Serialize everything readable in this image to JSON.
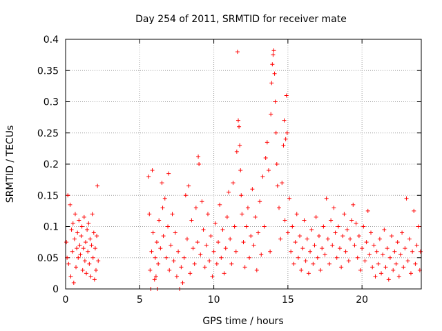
{
  "chart_data": {
    "type": "scatter",
    "title": "Day 254 of 2011, SRMTID for receiver mate",
    "xlabel": "GPS time / hours",
    "ylabel": "SRMTID / TECUs",
    "xlim": [
      0,
      24
    ],
    "ylim": [
      0,
      0.4
    ],
    "xticks": [
      0,
      5,
      10,
      15,
      20
    ],
    "xtick_labels": [
      "0",
      "5",
      "10",
      "15",
      "20"
    ],
    "yticks": [
      0,
      0.05,
      0.1,
      0.15,
      0.2,
      0.25,
      0.3,
      0.35,
      0.4
    ],
    "ytick_labels": [
      "0",
      "0.05",
      "0.1",
      "0.15",
      "0.2",
      "0.25",
      "0.3",
      "0.35",
      "0.4"
    ],
    "grid": true,
    "marker": "+",
    "color": "#ff0000",
    "series": [
      {
        "name": "SRMTID",
        "points": [
          [
            0.05,
            0.075
          ],
          [
            0.1,
            0.05
          ],
          [
            0.15,
            0.15
          ],
          [
            0.2,
            0.04
          ],
          [
            0.3,
            0.135
          ],
          [
            0.35,
            0.02
          ],
          [
            0.4,
            0.095
          ],
          [
            0.45,
            0.06
          ],
          [
            0.5,
            0.105
          ],
          [
            0.55,
            0.01
          ],
          [
            0.6,
            0.08
          ],
          [
            0.65,
            0.12
          ],
          [
            0.7,
            0.035
          ],
          [
            0.75,
            0.065
          ],
          [
            0.8,
            0.09
          ],
          [
            0.85,
            0.05
          ],
          [
            0.9,
            0.11
          ],
          [
            0.95,
            0.07
          ],
          [
            1.0,
            0.055
          ],
          [
            1.05,
            0.085
          ],
          [
            1.1,
            0.1
          ],
          [
            1.15,
            0.03
          ],
          [
            1.2,
            0.065
          ],
          [
            1.25,
            0.115
          ],
          [
            1.3,
            0.045
          ],
          [
            1.35,
            0.075
          ],
          [
            1.4,
            0.025
          ],
          [
            1.45,
            0.095
          ],
          [
            1.5,
            0.06
          ],
          [
            1.55,
            0.105
          ],
          [
            1.6,
            0.04
          ],
          [
            1.65,
            0.08
          ],
          [
            1.7,
            0.02
          ],
          [
            1.75,
            0.07
          ],
          [
            1.8,
            0.12
          ],
          [
            1.85,
            0.05
          ],
          [
            1.9,
            0.09
          ],
          [
            1.95,
            0.015
          ],
          [
            2.0,
            0.065
          ],
          [
            2.05,
            0.03
          ],
          [
            2.1,
            0.085
          ],
          [
            2.15,
            0.165
          ],
          [
            2.2,
            0.045
          ],
          [
            5.6,
            0.18
          ],
          [
            5.65,
            0.12
          ],
          [
            5.7,
            0.03
          ],
          [
            5.75,
            0.0
          ],
          [
            5.8,
            0.06
          ],
          [
            5.85,
            0.19
          ],
          [
            5.9,
            0.09
          ],
          [
            6.0,
            0.015
          ],
          [
            6.05,
            0.05
          ],
          [
            6.1,
            0.02
          ],
          [
            6.15,
            0.075
          ],
          [
            6.2,
            0.0
          ],
          [
            6.25,
            0.04
          ],
          [
            6.3,
            0.11
          ],
          [
            6.4,
            0.065
          ],
          [
            6.5,
            0.17
          ],
          [
            6.55,
            0.13
          ],
          [
            6.6,
            0.085
          ],
          [
            6.7,
            0.145
          ],
          [
            6.8,
            0.05
          ],
          [
            6.9,
            0.1
          ],
          [
            6.95,
            0.185
          ],
          [
            7.0,
            0.03
          ],
          [
            7.1,
            0.07
          ],
          [
            7.2,
            0.12
          ],
          [
            7.3,
            0.045
          ],
          [
            7.4,
            0.09
          ],
          [
            7.5,
            0.02
          ],
          [
            7.6,
            0.06
          ],
          [
            7.7,
            0.0
          ],
          [
            7.8,
            0.035
          ],
          [
            7.9,
            0.01
          ],
          [
            8.0,
            0.05
          ],
          [
            8.1,
            0.15
          ],
          [
            8.2,
            0.08
          ],
          [
            8.3,
            0.165
          ],
          [
            8.4,
            0.025
          ],
          [
            8.5,
            0.11
          ],
          [
            8.6,
            0.065
          ],
          [
            8.7,
            0.04
          ],
          [
            8.8,
            0.13
          ],
          [
            8.9,
            0.075
          ],
          [
            8.95,
            0.212
          ],
          [
            9.0,
            0.2
          ],
          [
            9.1,
            0.055
          ],
          [
            9.2,
            0.14
          ],
          [
            9.3,
            0.095
          ],
          [
            9.4,
            0.035
          ],
          [
            9.5,
            0.07
          ],
          [
            9.6,
            0.12
          ],
          [
            9.7,
            0.045
          ],
          [
            9.8,
            0.085
          ],
          [
            9.9,
            0.02
          ],
          [
            10.0,
            0.06
          ],
          [
            10.1,
            0.105
          ],
          [
            10.2,
            0.04
          ],
          [
            10.3,
            0.075
          ],
          [
            10.4,
            0.135
          ],
          [
            10.5,
            0.05
          ],
          [
            10.6,
            0.095
          ],
          [
            10.7,
            0.025
          ],
          [
            10.8,
            0.065
          ],
          [
            10.9,
            0.115
          ],
          [
            11.0,
            0.155
          ],
          [
            11.1,
            0.08
          ],
          [
            11.2,
            0.04
          ],
          [
            11.3,
            0.17
          ],
          [
            11.4,
            0.1
          ],
          [
            11.5,
            0.06
          ],
          [
            11.55,
            0.22
          ],
          [
            11.6,
            0.38
          ],
          [
            11.65,
            0.27
          ],
          [
            11.7,
            0.26
          ],
          [
            11.75,
            0.23
          ],
          [
            11.8,
            0.19
          ],
          [
            11.85,
            0.15
          ],
          [
            11.9,
            0.12
          ],
          [
            12.0,
            0.075
          ],
          [
            12.1,
            0.035
          ],
          [
            12.2,
            0.1
          ],
          [
            12.3,
            0.13
          ],
          [
            12.4,
            0.05
          ],
          [
            12.5,
            0.085
          ],
          [
            12.6,
            0.16
          ],
          [
            12.7,
            0.07
          ],
          [
            12.8,
            0.115
          ],
          [
            12.9,
            0.03
          ],
          [
            13.0,
            0.09
          ],
          [
            13.1,
            0.14
          ],
          [
            13.2,
            0.055
          ],
          [
            13.3,
            0.18
          ],
          [
            13.4,
            0.1
          ],
          [
            13.5,
            0.21
          ],
          [
            13.6,
            0.235
          ],
          [
            13.7,
            0.19
          ],
          [
            13.8,
            0.06
          ],
          [
            13.85,
            0.28
          ],
          [
            13.9,
            0.33
          ],
          [
            13.95,
            0.36
          ],
          [
            14.0,
            0.375
          ],
          [
            14.05,
            0.382
          ],
          [
            14.1,
            0.345
          ],
          [
            14.15,
            0.3
          ],
          [
            14.2,
            0.25
          ],
          [
            14.25,
            0.2
          ],
          [
            14.3,
            0.165
          ],
          [
            14.4,
            0.13
          ],
          [
            14.5,
            0.08
          ],
          [
            14.6,
            0.17
          ],
          [
            14.7,
            0.23
          ],
          [
            14.75,
            0.27
          ],
          [
            14.8,
            0.11
          ],
          [
            14.85,
            0.24
          ],
          [
            14.9,
            0.31
          ],
          [
            14.95,
            0.25
          ],
          [
            15.0,
            0.09
          ],
          [
            15.1,
            0.145
          ],
          [
            15.2,
            0.06
          ],
          [
            15.3,
            0.1
          ],
          [
            15.4,
            0.04
          ],
          [
            15.5,
            0.075
          ],
          [
            15.6,
            0.12
          ],
          [
            15.7,
            0.05
          ],
          [
            15.8,
            0.085
          ],
          [
            15.9,
            0.03
          ],
          [
            16.0,
            0.065
          ],
          [
            16.1,
            0.11
          ],
          [
            16.2,
            0.045
          ],
          [
            16.3,
            0.08
          ],
          [
            16.4,
            0.025
          ],
          [
            16.5,
            0.06
          ],
          [
            16.6,
            0.095
          ],
          [
            16.7,
            0.04
          ],
          [
            16.8,
            0.07
          ],
          [
            16.9,
            0.115
          ],
          [
            17.0,
            0.05
          ],
          [
            17.1,
            0.085
          ],
          [
            17.2,
            0.03
          ],
          [
            17.3,
            0.065
          ],
          [
            17.4,
            0.1
          ],
          [
            17.5,
            0.055
          ],
          [
            17.6,
            0.145
          ],
          [
            17.7,
            0.08
          ],
          [
            17.8,
            0.04
          ],
          [
            17.9,
            0.11
          ],
          [
            18.0,
            0.07
          ],
          [
            18.1,
            0.13
          ],
          [
            18.2,
            0.09
          ],
          [
            18.3,
            0.05
          ],
          [
            18.4,
            0.1
          ],
          [
            18.5,
            0.065
          ],
          [
            18.6,
            0.035
          ],
          [
            18.7,
            0.085
          ],
          [
            18.8,
            0.12
          ],
          [
            18.9,
            0.06
          ],
          [
            19.0,
            0.095
          ],
          [
            19.1,
            0.045
          ],
          [
            19.2,
            0.08
          ],
          [
            19.3,
            0.11
          ],
          [
            19.4,
            0.135
          ],
          [
            19.5,
            0.07
          ],
          [
            19.6,
            0.105
          ],
          [
            19.7,
            0.05
          ],
          [
            19.8,
            0.085
          ],
          [
            19.9,
            0.03
          ],
          [
            20.0,
            0.065
          ],
          [
            20.1,
            0.1
          ],
          [
            20.2,
            0.045
          ],
          [
            20.3,
            0.075
          ],
          [
            20.4,
            0.125
          ],
          [
            20.5,
            0.055
          ],
          [
            20.6,
            0.09
          ],
          [
            20.7,
            0.035
          ],
          [
            20.8,
            0.07
          ],
          [
            20.9,
            0.02
          ],
          [
            21.0,
            0.06
          ],
          [
            21.1,
            0.04
          ],
          [
            21.2,
            0.08
          ],
          [
            21.3,
            0.025
          ],
          [
            21.4,
            0.055
          ],
          [
            21.5,
            0.095
          ],
          [
            21.6,
            0.035
          ],
          [
            21.7,
            0.065
          ],
          [
            21.8,
            0.015
          ],
          [
            21.9,
            0.05
          ],
          [
            22.0,
            0.085
          ],
          [
            22.1,
            0.03
          ],
          [
            22.2,
            0.06
          ],
          [
            22.3,
            0.04
          ],
          [
            22.4,
            0.075
          ],
          [
            22.5,
            0.02
          ],
          [
            22.6,
            0.055
          ],
          [
            22.7,
            0.09
          ],
          [
            22.8,
            0.035
          ],
          [
            22.9,
            0.065
          ],
          [
            23.0,
            0.145
          ],
          [
            23.1,
            0.045
          ],
          [
            23.2,
            0.08
          ],
          [
            23.3,
            0.025
          ],
          [
            23.4,
            0.06
          ],
          [
            23.5,
            0.125
          ],
          [
            23.6,
            0.04
          ],
          [
            23.7,
            0.07
          ],
          [
            23.8,
            0.1
          ],
          [
            23.9,
            0.03
          ],
          [
            23.95,
            0.06
          ]
        ]
      }
    ]
  }
}
